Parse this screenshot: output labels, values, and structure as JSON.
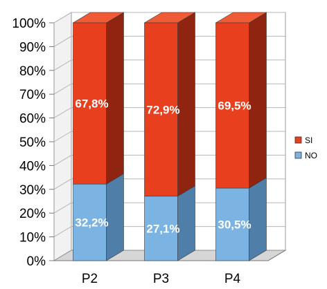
{
  "chart_data": {
    "type": "bar",
    "stacked": true,
    "percent": true,
    "three_d": true,
    "categories": [
      "P2",
      "P3",
      "P4"
    ],
    "series": [
      {
        "name": "NO",
        "values": [
          32.2,
          27.1,
          30.5
        ],
        "labels": [
          "32,2%",
          "27,1%",
          "30,5%"
        ],
        "color": "#7bb3e3",
        "side_color": "#4f7ea8",
        "top_color": "#9fc9ee"
      },
      {
        "name": "SI",
        "values": [
          67.8,
          72.9,
          69.5
        ],
        "labels": [
          "67,8%",
          "72,9%",
          "69,5%"
        ],
        "color": "#e8401e",
        "side_color": "#8f2410",
        "top_color": "#f05b36"
      }
    ],
    "y_ticks": [
      "0%",
      "10%",
      "20%",
      "30%",
      "40%",
      "50%",
      "60%",
      "70%",
      "80%",
      "90%",
      "100%"
    ],
    "ylim": [
      0,
      100
    ],
    "grid": true,
    "legend": {
      "placement": "right",
      "order": [
        "SI",
        "NO"
      ]
    },
    "title": "",
    "xlabel": "",
    "ylabel": ""
  }
}
